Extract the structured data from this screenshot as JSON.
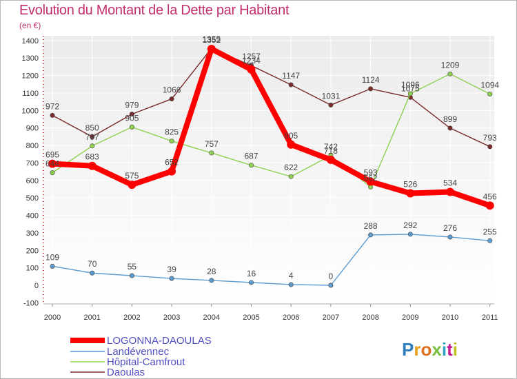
{
  "header": {
    "title": "Evolution du Montant de la Dette par Habitant",
    "subtitle": "(en €)"
  },
  "logo": {
    "text": "Proxiti"
  },
  "chart_data": {
    "type": "line",
    "title": "Evolution du Montant de la Dette par Habitant",
    "subtitle": "(en €)",
    "x": [
      "2000",
      "2001",
      "2002",
      "2003",
      "2004",
      "2005",
      "2006",
      "2007",
      "2008",
      "2009",
      "2010",
      "2011"
    ],
    "ylim": [
      -100,
      1400
    ],
    "yticks": [
      -100,
      0,
      100,
      200,
      300,
      400,
      500,
      600,
      700,
      800,
      900,
      1000,
      1100,
      1200,
      1300,
      1400
    ],
    "grid": true,
    "legend": "bottom-left",
    "series": [
      {
        "name": "LOGONNA-DAOULAS",
        "color": "#ff0000",
        "values": [
          695,
          683,
          575,
          652,
          1352,
          1234,
          805,
          718,
          593,
          526,
          534,
          456
        ],
        "labels": [
          "695",
          "683",
          "575",
          "652",
          "1352",
          "1234",
          "805",
          "718",
          "593",
          "526",
          "534",
          "456"
        ]
      },
      {
        "name": "Landévennec",
        "color": "#5b9bd0",
        "values": [
          109,
          70,
          55,
          39,
          28,
          16,
          4,
          0,
          288,
          292,
          276,
          255
        ],
        "labels": [
          "109",
          "70",
          "55",
          "39",
          "28",
          "16",
          "4",
          "0",
          "288",
          "292",
          "276",
          "255"
        ]
      },
      {
        "name": "Hôpital-Camfrout",
        "color": "#90d050",
        "values": [
          644,
          797,
          905,
          825,
          757,
          687,
          622,
          742,
          562,
          1096,
          1209,
          1094
        ],
        "labels": [
          "644",
          "797",
          "905",
          "825",
          "757",
          "687",
          "622",
          "742",
          "562",
          "1096",
          "1209",
          "1094"
        ]
      },
      {
        "name": "Daoulas",
        "color": "#7a2a2a",
        "values": [
          972,
          850,
          979,
          1066,
          1355,
          1257,
          1147,
          1031,
          1124,
          1075,
          899,
          793
        ],
        "labels": [
          "972",
          "850",
          "979",
          "1066",
          "1355",
          "1257",
          "1147",
          "1031",
          "1124",
          "1075",
          "899",
          "793"
        ]
      }
    ]
  }
}
